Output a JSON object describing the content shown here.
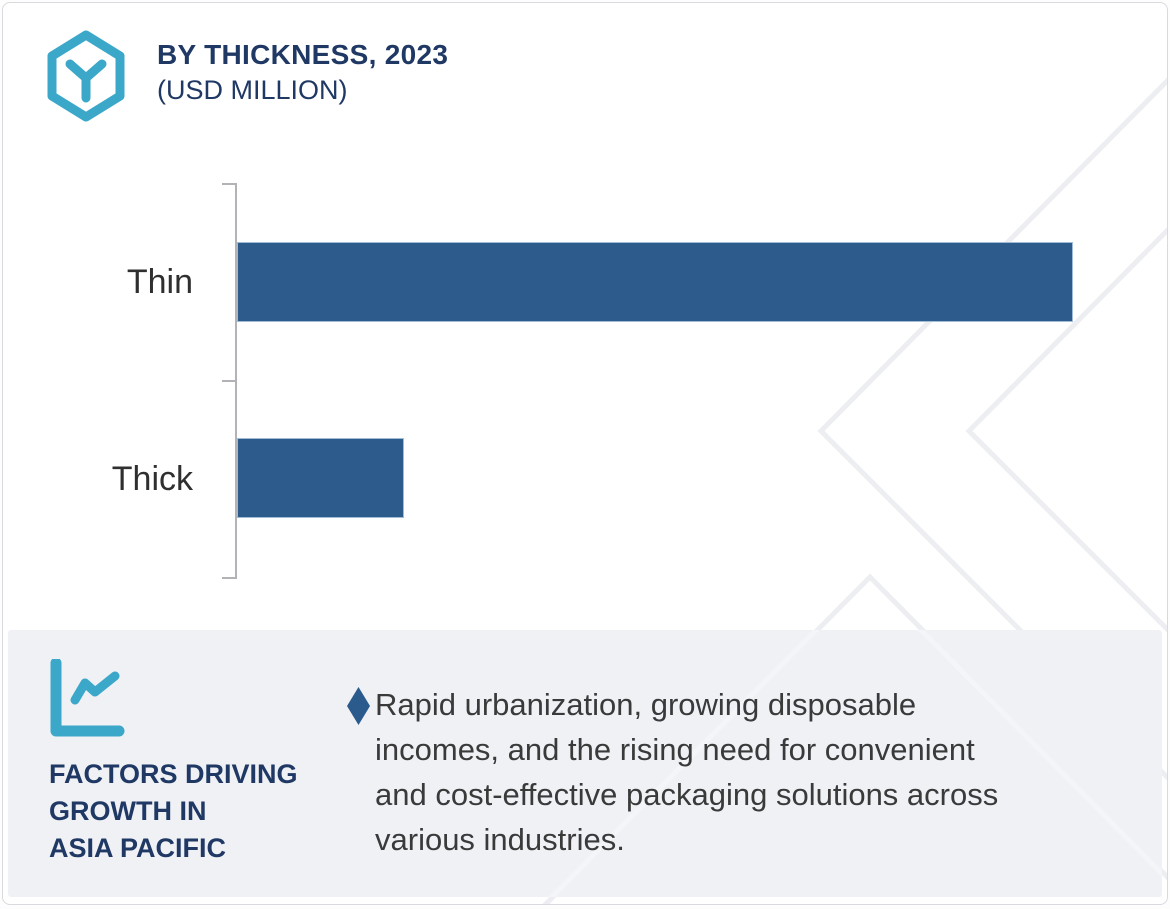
{
  "header": {
    "title": "BY THICKNESS, 2023",
    "subtitle": "(USD MILLION)",
    "logo_icon": "hexagon-cube-logo"
  },
  "chart_data": {
    "type": "bar",
    "orientation": "horizontal",
    "title": "BY THICKNESS, 2023",
    "subtitle": "(USD MILLION)",
    "unit": "USD Million",
    "categories": [
      "Thin",
      "Thick"
    ],
    "values_relative": [
      100,
      20
    ],
    "xlim": [
      0,
      100
    ],
    "value_labels_shown": false,
    "axis_tick_labels_shown": false,
    "grid": false,
    "legend": false,
    "bar_color": "#2D5C8C"
  },
  "footer": {
    "icon": "line-chart-icon",
    "heading_lines": [
      "FACTORS DRIVING",
      "GROWTH IN",
      "ASIA PACIFIC"
    ],
    "bullet": {
      "marker": "diamond",
      "lines": [
        "Rapid urbanization, growing disposable",
        "incomes, and the rising need for convenient",
        "and cost-effective packaging solutions across",
        "various industries."
      ]
    }
  },
  "colors": {
    "accent_teal": "#3BA7C9",
    "navy": "#1F3864",
    "bar_blue": "#2D5C8C",
    "diamond_blue": "#2B5A8C",
    "footer_bg": "#EFF1F5",
    "body_text": "#3A3A3A",
    "axis_gray": "#B1B3B6",
    "watermark_gray": "#EDEEF1",
    "card_border": "#D8DAE0"
  }
}
